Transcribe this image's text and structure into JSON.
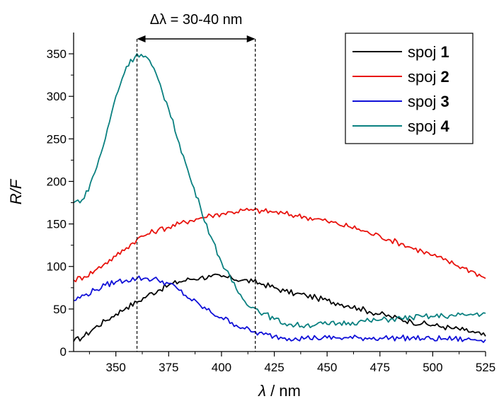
{
  "chart_data": {
    "type": "line",
    "xlabel": "λ / nm",
    "ylabel": "R/F",
    "xlim": [
      330,
      525
    ],
    "ylim": [
      0,
      375
    ],
    "x_ticks": [
      350,
      375,
      400,
      425,
      450,
      475,
      500,
      525
    ],
    "y_ticks": [
      0,
      50,
      100,
      150,
      200,
      250,
      300,
      350
    ],
    "annotation": {
      "text": "Δλ = 30-40 nm",
      "x_start": 360,
      "x_end": 416
    },
    "legend_position": "top-right",
    "series": [
      {
        "name": "spoj 1",
        "label_plain": "spoj ",
        "label_bold": "1",
        "color": "#000000",
        "x": [
          330,
          335,
          340,
          345,
          350,
          355,
          360,
          365,
          370,
          375,
          380,
          385,
          390,
          395,
          400,
          405,
          410,
          415,
          420,
          425,
          430,
          435,
          440,
          445,
          450,
          455,
          460,
          465,
          470,
          475,
          480,
          485,
          490,
          495,
          500,
          505,
          510,
          515,
          520,
          525
        ],
        "values": [
          12,
          18,
          28,
          36,
          44,
          52,
          58,
          66,
          72,
          78,
          82,
          85,
          87,
          88,
          88,
          86,
          84,
          82,
          79,
          75,
          71,
          68,
          66,
          63,
          60,
          57,
          54,
          51,
          47,
          44,
          41,
          38,
          35,
          33,
          31,
          29,
          27,
          25,
          22,
          18
        ]
      },
      {
        "name": "spoj 2",
        "label_plain": "spoj ",
        "label_bold": "2",
        "color": "#e8120c",
        "x": [
          330,
          335,
          340,
          345,
          350,
          355,
          360,
          365,
          370,
          375,
          380,
          385,
          390,
          395,
          400,
          405,
          410,
          415,
          420,
          425,
          430,
          435,
          440,
          445,
          450,
          455,
          460,
          465,
          470,
          475,
          480,
          485,
          490,
          495,
          500,
          505,
          510,
          515,
          520,
          525
        ],
        "values": [
          84,
          88,
          95,
          104,
          112,
          122,
          132,
          138,
          143,
          146,
          150,
          154,
          157,
          160,
          162,
          164,
          166,
          166,
          165,
          164,
          162,
          160,
          158,
          156,
          153,
          150,
          147,
          144,
          139,
          136,
          131,
          127,
          122,
          118,
          113,
          108,
          103,
          98,
          93,
          86
        ]
      },
      {
        "name": "spoj 3",
        "label_plain": "spoj ",
        "label_bold": "3",
        "color": "#1010d8",
        "x": [
          330,
          335,
          340,
          345,
          350,
          355,
          360,
          365,
          370,
          375,
          380,
          385,
          390,
          395,
          400,
          405,
          410,
          415,
          420,
          425,
          430,
          435,
          440,
          445,
          450,
          455,
          460,
          465,
          470,
          475,
          480,
          485,
          490,
          495,
          500,
          505,
          510,
          515,
          520,
          525
        ],
        "values": [
          60,
          66,
          72,
          78,
          82,
          84,
          86,
          86,
          84,
          80,
          72,
          62,
          54,
          46,
          40,
          34,
          28,
          23,
          20,
          18,
          16,
          16,
          16,
          16,
          16,
          16,
          16,
          16,
          16,
          16,
          16,
          16,
          16,
          15,
          15,
          15,
          15,
          14,
          14,
          14
        ]
      },
      {
        "name": "spoj 4",
        "label_plain": "spoj ",
        "label_bold": "4",
        "color": "#0a8080",
        "x": [
          330,
          335,
          340,
          345,
          350,
          355,
          360,
          365,
          370,
          375,
          380,
          385,
          390,
          395,
          400,
          405,
          410,
          415,
          420,
          425,
          430,
          435,
          440,
          445,
          450,
          455,
          460,
          465,
          470,
          475,
          480,
          485,
          490,
          495,
          500,
          505,
          510,
          515,
          520,
          525
        ],
        "values": [
          175,
          180,
          210,
          250,
          300,
          335,
          350,
          345,
          320,
          285,
          245,
          205,
          170,
          135,
          105,
          82,
          62,
          52,
          45,
          38,
          33,
          31,
          31,
          32,
          32,
          33,
          34,
          35,
          36,
          37,
          38,
          39,
          40,
          41,
          41,
          42,
          42,
          43,
          44,
          45
        ]
      }
    ]
  }
}
